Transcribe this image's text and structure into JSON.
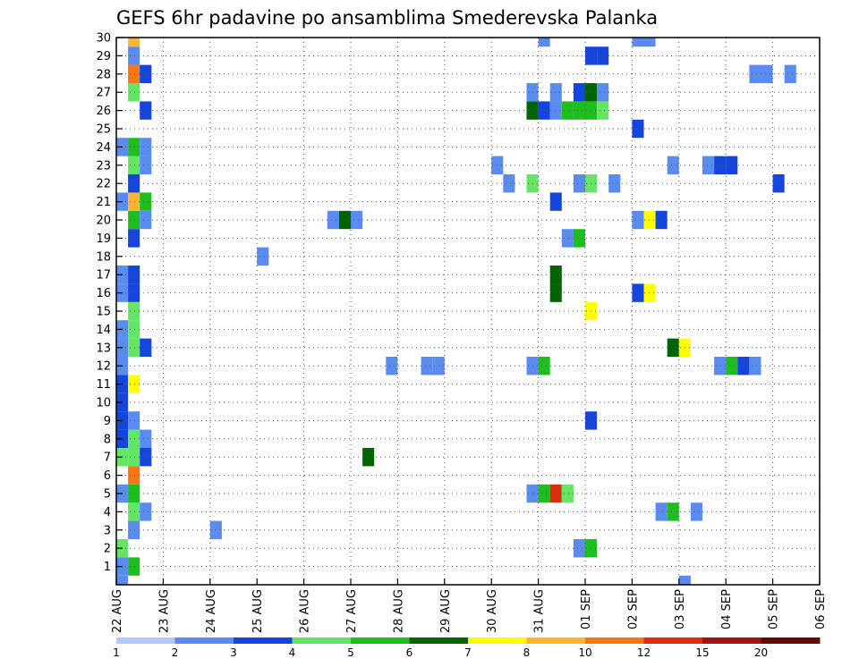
{
  "chart_data": {
    "type": "heatmap",
    "title": "GEFS 6hr padavine po ansamblima Smederevska Palanka",
    "xlabel": "",
    "ylabel": "",
    "x_ticks": [
      "22 AUG",
      "23 AUG",
      "24 AUG",
      "25 AUG",
      "26 AUG",
      "27 AUG",
      "28 AUG",
      "29 AUG",
      "30 AUG",
      "31 AUG",
      "01 SEP",
      "02 SEP",
      "03 SEP",
      "04 SEP",
      "05 SEP",
      "06 SEP"
    ],
    "x_unit": "6-hour step from 22 AUG 00Z",
    "y_ticks": [
      1,
      2,
      3,
      4,
      5,
      6,
      7,
      8,
      9,
      10,
      11,
      12,
      13,
      14,
      15,
      16,
      17,
      18,
      19,
      20,
      21,
      22,
      23,
      24,
      25,
      26,
      27,
      28,
      29,
      30
    ],
    "xlim": [
      0,
      60
    ],
    "ylim": [
      0,
      30
    ],
    "grid": true,
    "legend": {
      "position": "bottom",
      "labels": [
        "1",
        "2",
        "3",
        "4",
        "5",
        "6",
        "7",
        "8",
        "10",
        "12",
        "15",
        "20"
      ],
      "colors": [
        "#b4c8fa",
        "#5a8cf0",
        "#1446dc",
        "#64e664",
        "#1ebe1e",
        "#006400",
        "#ffff00",
        "#ffb432",
        "#fa7814",
        "#dc2d0f",
        "#a01414",
        "#640a0a"
      ]
    },
    "cells": [
      [
        1,
        0,
        1
      ],
      [
        1,
        1,
        4
      ],
      [
        2,
        0,
        3
      ],
      [
        2,
        39,
        1
      ],
      [
        2,
        40,
        4
      ],
      [
        3,
        1,
        1
      ],
      [
        3,
        8,
        1
      ],
      [
        4,
        1,
        3
      ],
      [
        4,
        2,
        1
      ],
      [
        4,
        46,
        1
      ],
      [
        4,
        47,
        4
      ],
      [
        4,
        49,
        1
      ],
      [
        5,
        0,
        1
      ],
      [
        5,
        1,
        4
      ],
      [
        5,
        35,
        1
      ],
      [
        5,
        36,
        4
      ],
      [
        5,
        37,
        9
      ],
      [
        5,
        38,
        3
      ],
      [
        6,
        1,
        8
      ],
      [
        7,
        0,
        3
      ],
      [
        7,
        1,
        3
      ],
      [
        7,
        2,
        2
      ],
      [
        7,
        21,
        5
      ],
      [
        8,
        0,
        2
      ],
      [
        8,
        1,
        3
      ],
      [
        8,
        2,
        1
      ],
      [
        9,
        0,
        2
      ],
      [
        9,
        1,
        1
      ],
      [
        9,
        40,
        2
      ],
      [
        10,
        0,
        2
      ],
      [
        11,
        0,
        2
      ],
      [
        11,
        1,
        6
      ],
      [
        12,
        0,
        1
      ],
      [
        12,
        23,
        1
      ],
      [
        12,
        26,
        1
      ],
      [
        12,
        27,
        1
      ],
      [
        12,
        35,
        1
      ],
      [
        12,
        36,
        4
      ],
      [
        12,
        51,
        1
      ],
      [
        12,
        52,
        4
      ],
      [
        12,
        53,
        2
      ],
      [
        12,
        54,
        1
      ],
      [
        13,
        0,
        1
      ],
      [
        13,
        1,
        3
      ],
      [
        13,
        2,
        2
      ],
      [
        13,
        47,
        5
      ],
      [
        13,
        48,
        6
      ],
      [
        14,
        0,
        1
      ],
      [
        14,
        1,
        3
      ],
      [
        15,
        1,
        3
      ],
      [
        15,
        40,
        6
      ],
      [
        16,
        0,
        1
      ],
      [
        16,
        1,
        2
      ],
      [
        16,
        37,
        5
      ],
      [
        16,
        44,
        2
      ],
      [
        16,
        45,
        6
      ],
      [
        17,
        0,
        1
      ],
      [
        17,
        1,
        2
      ],
      [
        17,
        37,
        5
      ],
      [
        18,
        12,
        1
      ],
      [
        19,
        1,
        2
      ],
      [
        19,
        38,
        1
      ],
      [
        19,
        39,
        4
      ],
      [
        20,
        1,
        4
      ],
      [
        20,
        2,
        1
      ],
      [
        20,
        18,
        1
      ],
      [
        20,
        19,
        5
      ],
      [
        20,
        20,
        1
      ],
      [
        20,
        44,
        1
      ],
      [
        20,
        45,
        6
      ],
      [
        20,
        46,
        2
      ],
      [
        21,
        0,
        1
      ],
      [
        21,
        1,
        7
      ],
      [
        21,
        2,
        4
      ],
      [
        21,
        37,
        2
      ],
      [
        22,
        1,
        2
      ],
      [
        22,
        33,
        1
      ],
      [
        22,
        35,
        3
      ],
      [
        22,
        39,
        1
      ],
      [
        22,
        40,
        3
      ],
      [
        22,
        42,
        1
      ],
      [
        22,
        56,
        2
      ],
      [
        23,
        1,
        3
      ],
      [
        23,
        2,
        1
      ],
      [
        23,
        32,
        1
      ],
      [
        23,
        47,
        1
      ],
      [
        23,
        50,
        1
      ],
      [
        23,
        51,
        2
      ],
      [
        23,
        52,
        2
      ],
      [
        24,
        0,
        1
      ],
      [
        24,
        1,
        4
      ],
      [
        24,
        2,
        1
      ],
      [
        25,
        44,
        2
      ],
      [
        26,
        2,
        2
      ],
      [
        26,
        35,
        5
      ],
      [
        26,
        36,
        2
      ],
      [
        26,
        37,
        1
      ],
      [
        26,
        38,
        4
      ],
      [
        26,
        39,
        4
      ],
      [
        26,
        40,
        4
      ],
      [
        26,
        41,
        3
      ],
      [
        27,
        1,
        3
      ],
      [
        27,
        35,
        1
      ],
      [
        27,
        37,
        1
      ],
      [
        27,
        39,
        2
      ],
      [
        27,
        40,
        5
      ],
      [
        27,
        41,
        1
      ],
      [
        28,
        1,
        8
      ],
      [
        28,
        2,
        2
      ],
      [
        28,
        54,
        1
      ],
      [
        28,
        55,
        1
      ],
      [
        28,
        57,
        1
      ],
      [
        29,
        1,
        1
      ],
      [
        29,
        40,
        2
      ],
      [
        29,
        41,
        2
      ],
      [
        30,
        1,
        7
      ],
      [
        30,
        36,
        1
      ],
      [
        30,
        44,
        1
      ],
      [
        30,
        45,
        1
      ],
      [
        0,
        0,
        1
      ],
      [
        0,
        48,
        1
      ]
    ]
  }
}
